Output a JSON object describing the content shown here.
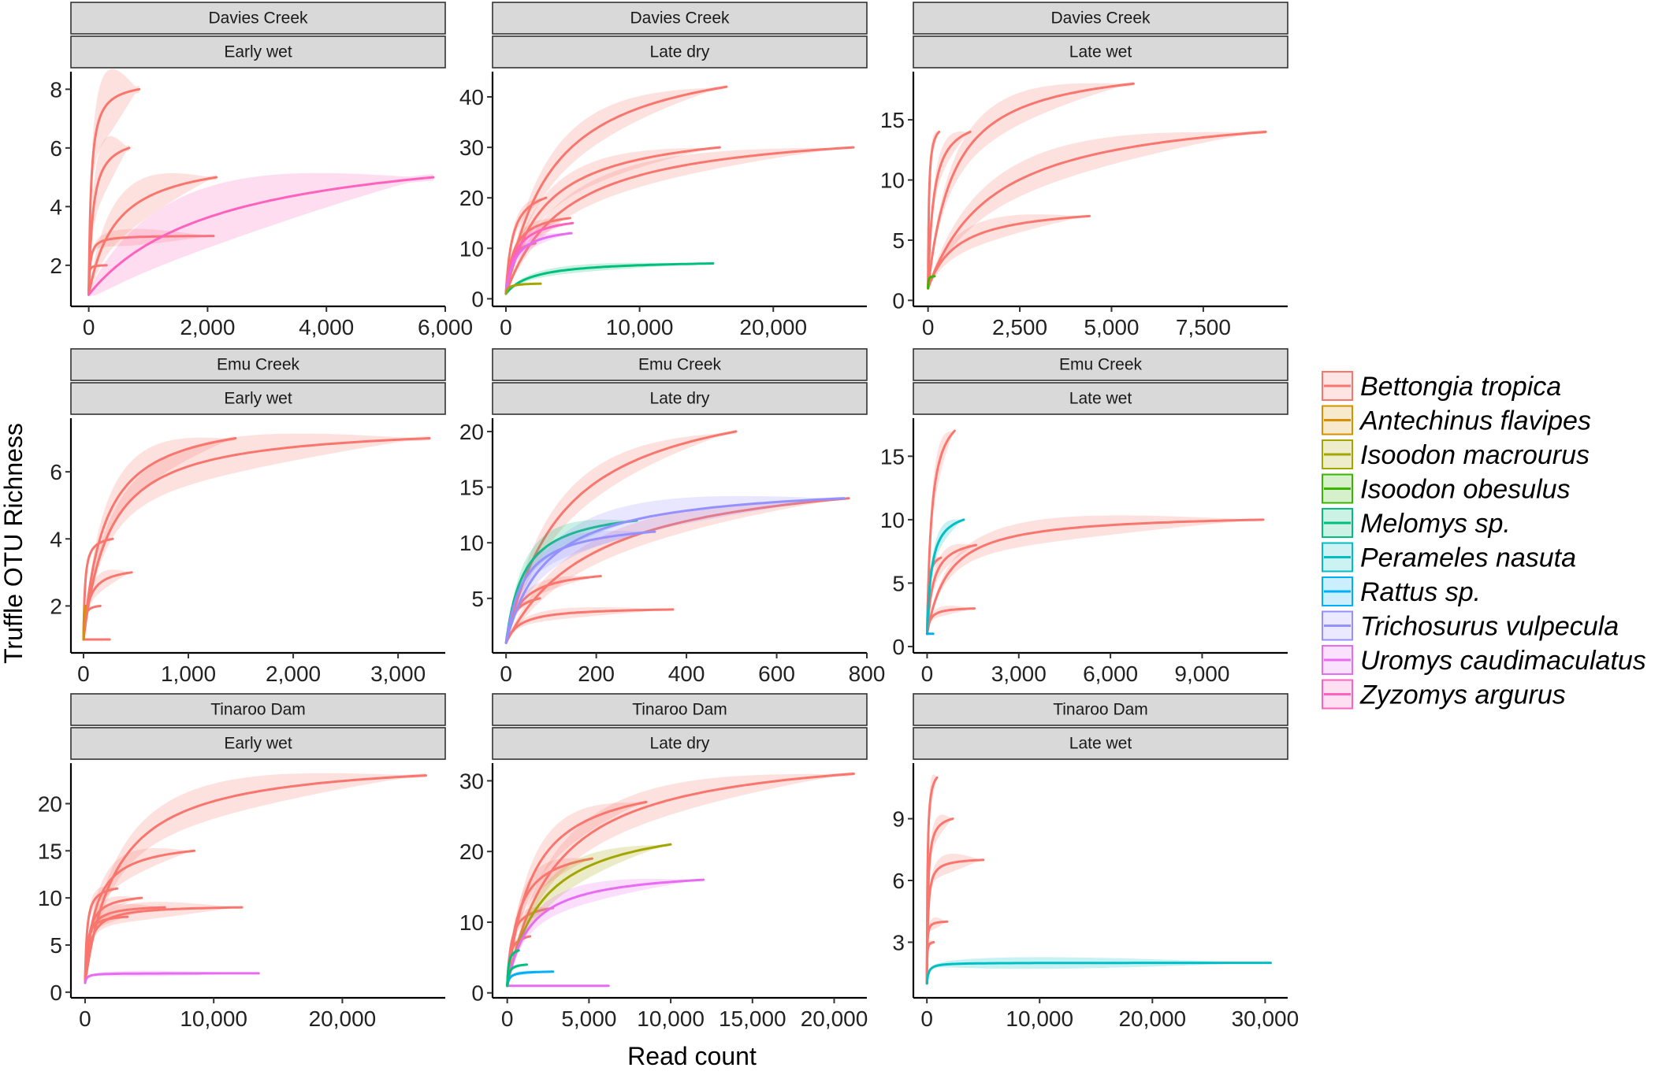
{
  "figure": {
    "xlabel": "Read count",
    "ylabel": "Truffle OTU Richness"
  },
  "legend": {
    "entries": [
      {
        "name": "Bettongia tropica",
        "color": "#F8766D"
      },
      {
        "name": "Antechinus flavipes",
        "color": "#D89000"
      },
      {
        "name": "Isoodon macrourus",
        "color": "#A3A500"
      },
      {
        "name": "Isoodon obesulus",
        "color": "#39B600"
      },
      {
        "name": "Melomys sp.",
        "color": "#00BF7D"
      },
      {
        "name": "Perameles nasuta",
        "color": "#00BFC4"
      },
      {
        "name": "Rattus sp.",
        "color": "#00B0F6"
      },
      {
        "name": "Trichosurus vulpecula",
        "color": "#9590FF"
      },
      {
        "name": "Uromys caudimaculatus",
        "color": "#E76BF3"
      },
      {
        "name": "Zyzomys argurus",
        "color": "#FF62BC"
      }
    ]
  },
  "chart_data": [
    {
      "type": "line",
      "site": "Davies Creek",
      "season": "Early wet",
      "xlim": [
        -300,
        6000
      ],
      "ylim": [
        0.6,
        8.6
      ],
      "xticks": [
        0,
        2000,
        4000,
        6000
      ],
      "xtick_labels": [
        "0",
        "2,000",
        "4,000",
        "6,000"
      ],
      "yticks": [
        2,
        4,
        6,
        8
      ],
      "ytick_labels": [
        "2",
        "4",
        "6",
        "8"
      ],
      "series": [
        {
          "species": "Bettongia tropica",
          "end_x": 850,
          "end_y": 8,
          "k": 40,
          "band": 1.2
        },
        {
          "species": "Bettongia tropica",
          "end_x": 680,
          "end_y": 6,
          "k": 70,
          "band": 1.0
        },
        {
          "species": "Bettongia tropica",
          "end_x": 2150,
          "end_y": 5,
          "k": 450,
          "band": 0.8
        },
        {
          "species": "Bettongia tropica",
          "end_x": 2100,
          "end_y": 3,
          "k": 25,
          "band": 0.3
        },
        {
          "species": "Bettongia tropica",
          "end_x": 300,
          "end_y": 2,
          "k": 5,
          "band": 0
        },
        {
          "species": "Zyzomys argurus",
          "end_x": 5800,
          "end_y": 5,
          "k": 2200,
          "band": 1.1
        }
      ]
    },
    {
      "type": "line",
      "site": "Davies Creek",
      "season": "Late dry",
      "xlim": [
        -1000,
        27000
      ],
      "ylim": [
        -1.5,
        45
      ],
      "xticks": [
        0,
        10000,
        20000
      ],
      "xtick_labels": [
        "0",
        "10,000",
        "20,000"
      ],
      "yticks": [
        0,
        10,
        20,
        30,
        40
      ],
      "ytick_labels": [
        "0",
        "10",
        "20",
        "30",
        "40"
      ],
      "series": [
        {
          "species": "Bettongia tropica",
          "end_x": 16500,
          "end_y": 42,
          "k": 3500,
          "band": 3.5
        },
        {
          "species": "Bettongia tropica",
          "end_x": 16000,
          "end_y": 30,
          "k": 2800,
          "band": 2.5
        },
        {
          "species": "Bettongia tropica",
          "end_x": 26000,
          "end_y": 30,
          "k": 4500,
          "band": 2.5
        },
        {
          "species": "Bettongia tropica",
          "end_x": 3000,
          "end_y": 20,
          "k": 500,
          "band": 1.5
        },
        {
          "species": "Bettongia tropica",
          "end_x": 4800,
          "end_y": 16,
          "k": 600,
          "band": 1.2
        },
        {
          "species": "Bettongia tropica",
          "end_x": 2200,
          "end_y": 11,
          "k": 300,
          "band": 1.0
        },
        {
          "species": "Zyzomys argurus",
          "end_x": 5000,
          "end_y": 15,
          "k": 700,
          "band": 1.2
        },
        {
          "species": "Uromys caudimaculatus",
          "end_x": 4900,
          "end_y": 13,
          "k": 700,
          "band": 1.2
        },
        {
          "species": "Melomys sp.",
          "end_x": 15500,
          "end_y": 7,
          "k": 2000,
          "band": 0.8
        },
        {
          "species": "Isoodon macrourus",
          "end_x": 2600,
          "end_y": 3,
          "k": 200,
          "band": 0.3
        }
      ]
    },
    {
      "type": "line",
      "site": "Davies Creek",
      "season": "Late wet",
      "xlim": [
        -400,
        9800
      ],
      "ylim": [
        -0.5,
        19
      ],
      "xticks": [
        0,
        2500,
        5000,
        7500
      ],
      "xtick_labels": [
        "0",
        "2,500",
        "5,000",
        "7,500"
      ],
      "yticks": [
        0,
        5,
        10,
        15
      ],
      "ytick_labels": [
        "0",
        "5",
        "10",
        "15"
      ],
      "series": [
        {
          "species": "Bettongia tropica",
          "end_x": 5600,
          "end_y": 18,
          "k": 700,
          "band": 1.5
        },
        {
          "species": "Bettongia tropica",
          "end_x": 9200,
          "end_y": 14,
          "k": 1800,
          "band": 1.5
        },
        {
          "species": "Bettongia tropica",
          "end_x": 4400,
          "end_y": 7,
          "k": 800,
          "band": 1.0
        },
        {
          "species": "Bettongia tropica",
          "end_x": 1150,
          "end_y": 14,
          "k": 150,
          "band": 1.2
        },
        {
          "species": "Bettongia tropica",
          "end_x": 300,
          "end_y": 14,
          "k": 25,
          "band": 0.8
        },
        {
          "species": "Isoodon obesulus",
          "end_x": 180,
          "end_y": 2,
          "k": 10,
          "band": 0
        }
      ]
    },
    {
      "type": "line",
      "site": "Emu Creek",
      "season": "Early wet",
      "xlim": [
        -120,
        3450
      ],
      "ylim": [
        0.6,
        7.6
      ],
      "xticks": [
        0,
        1000,
        2000,
        3000
      ],
      "xtick_labels": [
        "0",
        "1,000",
        "2,000",
        "3,000"
      ],
      "yticks": [
        2,
        4,
        6
      ],
      "ytick_labels": [
        "2",
        "4",
        "6"
      ],
      "series": [
        {
          "species": "Bettongia tropica",
          "end_x": 3300,
          "end_y": 7,
          "k": 250,
          "band": 0.6
        },
        {
          "species": "Bettongia tropica",
          "end_x": 1450,
          "end_y": 7,
          "k": 200,
          "band": 0.6
        },
        {
          "species": "Bettongia tropica",
          "end_x": 280,
          "end_y": 4,
          "k": 15,
          "band": 0
        },
        {
          "species": "Bettongia tropica",
          "end_x": 460,
          "end_y": 3,
          "k": 50,
          "band": 0.3
        },
        {
          "species": "Bettongia tropica",
          "end_x": 160,
          "end_y": 2,
          "k": 10,
          "band": 0
        },
        {
          "species": "Bettongia tropica",
          "end_x": 250,
          "end_y": 1,
          "k": 10,
          "band": 0
        },
        {
          "species": "Antechinus flavipes",
          "end_x": 20,
          "end_y": 2,
          "k": 5,
          "band": 0
        }
      ]
    },
    {
      "type": "line",
      "site": "Emu Creek",
      "season": "Late dry",
      "xlim": [
        -30,
        800
      ],
      "ylim": [
        0.1,
        21.2
      ],
      "xticks": [
        0,
        200,
        400,
        600,
        800
      ],
      "xtick_labels": [
        "0",
        "200",
        "400",
        "600",
        "800"
      ],
      "yticks": [
        5,
        10,
        15,
        20
      ],
      "ytick_labels": [
        "5",
        "10",
        "15",
        "20"
      ],
      "series": [
        {
          "species": "Bettongia tropica",
          "end_x": 510,
          "end_y": 20,
          "k": 130,
          "band": 1.5
        },
        {
          "species": "Bettongia tropica",
          "end_x": 760,
          "end_y": 14,
          "k": 200,
          "band": 1.2
        },
        {
          "species": "Bettongia tropica",
          "end_x": 210,
          "end_y": 7,
          "k": 30,
          "band": 0.6
        },
        {
          "species": "Bettongia tropica",
          "end_x": 370,
          "end_y": 4,
          "k": 30,
          "band": 0.5
        },
        {
          "species": "Bettongia tropica",
          "end_x": 75,
          "end_y": 5,
          "k": 15,
          "band": 0.3
        },
        {
          "species": "Melomys sp.",
          "end_x": 290,
          "end_y": 12,
          "k": 40,
          "band": 1.2
        },
        {
          "species": "Trichosurus vulpecula",
          "end_x": 750,
          "end_y": 14,
          "k": 90,
          "band": 1.5
        },
        {
          "species": "Trichosurus vulpecula",
          "end_x": 330,
          "end_y": 11,
          "k": 40,
          "band": 1.0
        }
      ]
    },
    {
      "type": "line",
      "site": "Emu Creek",
      "season": "Late wet",
      "xlim": [
        -450,
        11800
      ],
      "ylim": [
        -0.5,
        18
      ],
      "xticks": [
        0,
        3000,
        6000,
        9000
      ],
      "xtick_labels": [
        "0",
        "3,000",
        "6,000",
        "9,000"
      ],
      "yticks": [
        0,
        5,
        10,
        15
      ],
      "ytick_labels": [
        "0",
        "5",
        "10",
        "15"
      ],
      "series": [
        {
          "species": "Bettongia tropica",
          "end_x": 900,
          "end_y": 17,
          "k": 150,
          "band": 1.5
        },
        {
          "species": "Bettongia tropica",
          "end_x": 11000,
          "end_y": 10,
          "k": 700,
          "band": 1.0
        },
        {
          "species": "Bettongia tropica",
          "end_x": 1600,
          "end_y": 8,
          "k": 200,
          "band": 0.8
        },
        {
          "species": "Bettongia tropica",
          "end_x": 450,
          "end_y": 7,
          "k": 40,
          "band": 0.6
        },
        {
          "species": "Bettongia tropica",
          "end_x": 1550,
          "end_y": 3,
          "k": 100,
          "band": 0.4
        },
        {
          "species": "Perameles nasuta",
          "end_x": 1200,
          "end_y": 10,
          "k": 150,
          "band": 0.8
        },
        {
          "species": "Rattus sp.",
          "end_x": 200,
          "end_y": 1,
          "k": 10,
          "band": 0
        }
      ]
    },
    {
      "type": "line",
      "site": "Tinaroo Dam",
      "season": "Early wet",
      "xlim": [
        -1100,
        28000
      ],
      "ylim": [
        -0.6,
        24.3
      ],
      "xticks": [
        0,
        10000,
        20000
      ],
      "xtick_labels": [
        "0",
        "10,000",
        "20,000"
      ],
      "yticks": [
        0,
        5,
        10,
        15,
        20
      ],
      "ytick_labels": [
        "0",
        "5",
        "10",
        "15",
        "20"
      ],
      "series": [
        {
          "species": "Bettongia tropica",
          "end_x": 26500,
          "end_y": 23,
          "k": 2500,
          "band": 2.0
        },
        {
          "species": "Bettongia tropica",
          "end_x": 8500,
          "end_y": 15,
          "k": 800,
          "band": 1.5
        },
        {
          "species": "Bettongia tropica",
          "end_x": 12200,
          "end_y": 9,
          "k": 400,
          "band": 1.0
        },
        {
          "species": "Bettongia tropica",
          "end_x": 6200,
          "end_y": 9,
          "k": 250,
          "band": 0.8
        },
        {
          "species": "Bettongia tropica",
          "end_x": 4400,
          "end_y": 10,
          "k": 300,
          "band": 0.8
        },
        {
          "species": "Bettongia tropica",
          "end_x": 2500,
          "end_y": 11,
          "k": 150,
          "band": 0.8
        },
        {
          "species": "Bettongia tropica",
          "end_x": 3300,
          "end_y": 8,
          "k": 150,
          "band": 0.6
        },
        {
          "species": "Uromys caudimaculatus",
          "end_x": 13500,
          "end_y": 2,
          "k": 150,
          "band": 0.3
        }
      ]
    },
    {
      "type": "line",
      "site": "Tinaroo Dam",
      "season": "Late dry",
      "xlim": [
        -900,
        22000
      ],
      "ylim": [
        -0.7,
        32.5
      ],
      "xticks": [
        0,
        5000,
        10000,
        15000,
        20000
      ],
      "xtick_labels": [
        "0",
        "5,000",
        "10,000",
        "15,000",
        "20,000"
      ],
      "yticks": [
        0,
        10,
        20,
        30
      ],
      "ytick_labels": [
        "0",
        "10",
        "20",
        "30"
      ],
      "series": [
        {
          "species": "Bettongia tropica",
          "end_x": 21200,
          "end_y": 31,
          "k": 3000,
          "band": 2.5
        },
        {
          "species": "Bettongia tropica",
          "end_x": 8500,
          "end_y": 27,
          "k": 1500,
          "band": 2.5
        },
        {
          "species": "Bettongia tropica",
          "end_x": 5200,
          "end_y": 19,
          "k": 700,
          "band": 1.8
        },
        {
          "species": "Bettongia tropica",
          "end_x": 2800,
          "end_y": 12,
          "k": 250,
          "band": 1.0
        },
        {
          "species": "Bettongia tropica",
          "end_x": 1400,
          "end_y": 8,
          "k": 150,
          "band": 0.6
        },
        {
          "species": "Isoodon macrourus",
          "end_x": 10000,
          "end_y": 21,
          "k": 2200,
          "band": 2.0
        },
        {
          "species": "Uromys caudimaculatus",
          "end_x": 12000,
          "end_y": 16,
          "k": 1400,
          "band": 1.5
        },
        {
          "species": "Uromys caudimaculatus",
          "end_x": 6200,
          "end_y": 1,
          "k": 10,
          "band": 0
        },
        {
          "species": "Rattus sp.",
          "end_x": 2800,
          "end_y": 3,
          "k": 150,
          "band": 0.3
        },
        {
          "species": "Melomys sp.",
          "end_x": 1200,
          "end_y": 4,
          "k": 100,
          "band": 0.3
        },
        {
          "species": "Melomys sp.",
          "end_x": 700,
          "end_y": 6,
          "k": 80,
          "band": 0.4
        }
      ]
    },
    {
      "type": "line",
      "site": "Tinaroo Dam",
      "season": "Late wet",
      "xlim": [
        -1200,
        32000
      ],
      "ylim": [
        0.3,
        11.7
      ],
      "xticks": [
        0,
        10000,
        20000,
        30000
      ],
      "xtick_labels": [
        "0",
        "10,000",
        "20,000",
        "30,000"
      ],
      "yticks": [
        3,
        6,
        9
      ],
      "ytick_labels": [
        "3",
        "6",
        "9"
      ],
      "series": [
        {
          "species": "Bettongia tropica",
          "end_x": 900,
          "end_y": 11,
          "k": 60,
          "band": 0.8
        },
        {
          "species": "Bettongia tropica",
          "end_x": 2300,
          "end_y": 9,
          "k": 100,
          "band": 0.6
        },
        {
          "species": "Bettongia tropica",
          "end_x": 5000,
          "end_y": 7,
          "k": 100,
          "band": 0.5
        },
        {
          "species": "Bettongia tropica",
          "end_x": 1800,
          "end_y": 4,
          "k": 30,
          "band": 0.3
        },
        {
          "species": "Bettongia tropica",
          "end_x": 600,
          "end_y": 3,
          "k": 20,
          "band": 0.2
        },
        {
          "species": "Perameles nasuta",
          "end_x": 30500,
          "end_y": 2,
          "k": 150,
          "band": 0.3
        }
      ]
    }
  ]
}
